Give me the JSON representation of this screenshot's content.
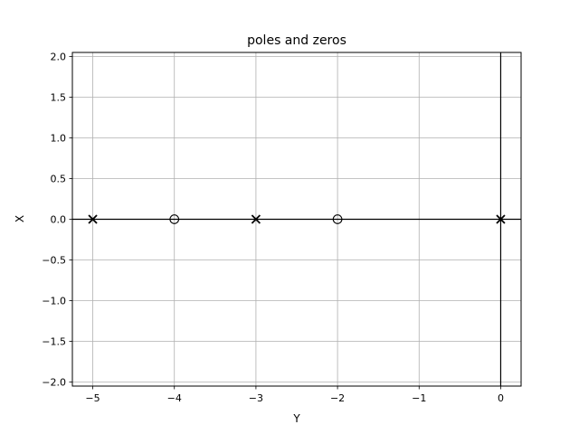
{
  "chart_data": {
    "type": "scatter",
    "title": "poles and zeros",
    "xlabel": "Y",
    "ylabel": "X",
    "xlim": [
      -5.25,
      0.25
    ],
    "ylim": [
      -2.05,
      2.05
    ],
    "grid": true,
    "x_ticks": [
      -5,
      -4,
      -3,
      -2,
      -1,
      0
    ],
    "x_tick_labels": [
      "−5",
      "−4",
      "−3",
      "−2",
      "−1",
      "0"
    ],
    "y_ticks": [
      2.0,
      1.5,
      1.0,
      0.5,
      0.0,
      -0.5,
      -1.0,
      -1.5,
      -2.0
    ],
    "y_tick_labels": [
      "2.0",
      "1.5",
      "1.0",
      "0.5",
      "0.0",
      "−0.5",
      "−1.0",
      "−1.5",
      "−2.0"
    ],
    "reference_lines": {
      "horizontal_at": 0,
      "vertical_at": 0
    },
    "series": [
      {
        "marker": "x",
        "x": [
          -5,
          -3,
          0
        ],
        "y": [
          0,
          0,
          0
        ]
      },
      {
        "marker": "o",
        "x": [
          -4,
          -2
        ],
        "y": [
          0,
          0
        ]
      }
    ],
    "colors": {
      "marks": "#000000",
      "grid": "#b0b0b0",
      "background": "#ffffff"
    }
  }
}
